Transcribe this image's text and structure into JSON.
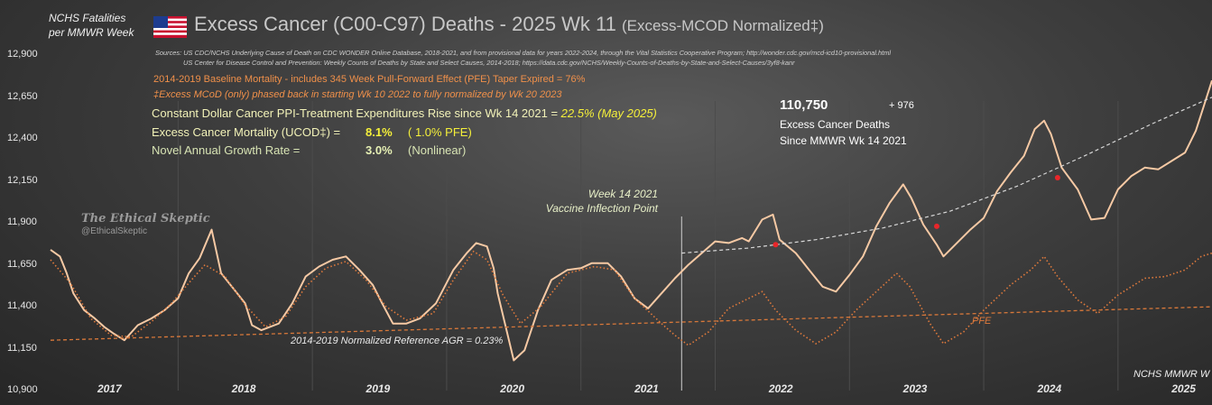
{
  "header": {
    "ylabel_line1": "NCHS Fatalities",
    "ylabel_line2": "per MMWR Week",
    "title": "Excess Cancer (C00-C97) Deaths - 2025 Wk 11",
    "title_suffix": "(Excess-MCOD  Normalized‡)",
    "sources_line1": "Sources:  US CDC/NCHS Underlying Cause of Death on CDC WONDER Online Database, 2018-2021, and from provisional data for years 2022-2024, through the Vital Statistics Cooperative Program; http://wonder.cdc.gov/mcd-icd10-provisional.html",
    "sources_line2": "US Center for Disease Control and Prevention: Weekly Counts of Deaths by State and Select Causes, 2014-2018; https://data.cdc.gov/NCHS/Weekly-Counts-of-Deaths-by-State-and-Select-Causes/3yf8-kanr"
  },
  "notes": {
    "baseline": "2014-2019 Baseline Mortality - includes 345 Week Pull-Forward Effect (PFE) Taper Expired =   76%",
    "mcod": "‡Excess  MCoD (only) phased back in starting  Wk 10 2022 to fully normalized  by Wk 20 2023",
    "ppi_label": "Constant Dollar Cancer PPI-Treatment Expenditures Rise since Wk 14 2021 = ",
    "ppi_value": "22.5% (May 2025)",
    "mortality_label": "Excess Cancer Mortality (UCOD‡) =",
    "mortality_value": "8.1%",
    "mortality_pfe": "( 1.0% PFE)",
    "growth_label": "Novel Annual Growth Rate  =",
    "growth_value": "3.0%",
    "growth_note": "(Nonlinear)"
  },
  "callout": {
    "total": "110,750",
    "delta": "+ 976",
    "line1": "Excess Cancer Deaths",
    "line2": "Since MMWR Wk 14 2021"
  },
  "annotations": {
    "vaccine_line1": "Week 14 2021",
    "vaccine_line2": "Vaccine Inflection Point",
    "reference": "2014-2019 Normalized Reference  AGR = 0.23%",
    "pfe": "PFE",
    "footer": "NCHS MMWR W",
    "watermark_line1": "The Ethical Skeptic",
    "watermark_line2": "@EthicalSkeptic"
  },
  "colors": {
    "excess_line": "#f6c9a4",
    "pfe_line": "#e07a3c",
    "reference_line": "#d8783a",
    "trend_line": "#d8d8d8",
    "marker": "#e8262a",
    "note_orange": "#f0904a",
    "highlight_yellow": "#f5f03a",
    "light_green": "#e6f0b4",
    "year_divider": "#4c4c4c"
  },
  "chart_data": {
    "type": "line",
    "x_unit": "year (decimal)",
    "xlim": [
      2016.55,
      2025.2
    ],
    "ylim": [
      10900,
      12950
    ],
    "yticks": [
      10900,
      11150,
      11400,
      11650,
      11900,
      12150,
      12400,
      12650,
      12900
    ],
    "ytick_labels": [
      "10,900",
      "11,150",
      "11,400",
      "11,650",
      "11,900",
      "12,150",
      "12,400",
      "12,650",
      "12,900"
    ],
    "categories": [
      "2017",
      "2018",
      "2019",
      "2020",
      "2021",
      "2022",
      "2023",
      "2024",
      "2025"
    ],
    "year_positions": [
      2017.0,
      2018.0,
      2019.0,
      2020.0,
      2021.0,
      2022.0,
      2023.0,
      2024.0,
      2025.0
    ],
    "vaccine_inflection_x": 2021.25,
    "series": [
      {
        "name": "",
        "style": "solid",
        "points": [
          [
            2016.55,
            11740
          ],
          [
            2016.62,
            11700
          ],
          [
            2016.67,
            11600
          ],
          [
            2016.72,
            11480
          ],
          [
            2016.8,
            11380
          ],
          [
            2016.88,
            11330
          ],
          [
            2016.95,
            11280
          ],
          [
            2017.02,
            11240
          ],
          [
            2017.1,
            11200
          ],
          [
            2017.2,
            11290
          ],
          [
            2017.3,
            11330
          ],
          [
            2017.4,
            11380
          ],
          [
            2017.5,
            11450
          ],
          [
            2017.58,
            11600
          ],
          [
            2017.66,
            11690
          ],
          [
            2017.75,
            11860
          ],
          [
            2017.82,
            11600
          ],
          [
            2017.9,
            11520
          ],
          [
            2018.0,
            11420
          ],
          [
            2018.05,
            11290
          ],
          [
            2018.12,
            11260
          ],
          [
            2018.25,
            11300
          ],
          [
            2018.35,
            11420
          ],
          [
            2018.45,
            11580
          ],
          [
            2018.55,
            11640
          ],
          [
            2018.65,
            11680
          ],
          [
            2018.75,
            11700
          ],
          [
            2018.85,
            11620
          ],
          [
            2018.95,
            11530
          ],
          [
            2019.02,
            11420
          ],
          [
            2019.1,
            11300
          ],
          [
            2019.2,
            11300
          ],
          [
            2019.3,
            11330
          ],
          [
            2019.42,
            11420
          ],
          [
            2019.55,
            11620
          ],
          [
            2019.65,
            11720
          ],
          [
            2019.72,
            11780
          ],
          [
            2019.8,
            11760
          ],
          [
            2019.85,
            11630
          ],
          [
            2019.88,
            11480
          ],
          [
            2019.94,
            11280
          ],
          [
            2020.0,
            11080
          ],
          [
            2020.08,
            11140
          ],
          [
            2020.18,
            11380
          ],
          [
            2020.28,
            11560
          ],
          [
            2020.4,
            11620
          ],
          [
            2020.5,
            11630
          ],
          [
            2020.58,
            11660
          ],
          [
            2020.7,
            11660
          ],
          [
            2020.8,
            11580
          ],
          [
            2020.9,
            11450
          ],
          [
            2021.0,
            11390
          ],
          [
            2021.1,
            11480
          ],
          [
            2021.2,
            11570
          ],
          [
            2021.3,
            11650
          ],
          [
            2021.4,
            11720
          ],
          [
            2021.5,
            11790
          ],
          [
            2021.6,
            11780
          ],
          [
            2021.7,
            11810
          ],
          [
            2021.75,
            11790
          ],
          [
            2021.85,
            11920
          ],
          [
            2021.93,
            11950
          ],
          [
            2021.98,
            11800
          ],
          [
            2022.1,
            11720
          ],
          [
            2022.2,
            11620
          ],
          [
            2022.3,
            11520
          ],
          [
            2022.4,
            11490
          ],
          [
            2022.5,
            11590
          ],
          [
            2022.6,
            11700
          ],
          [
            2022.7,
            11880
          ],
          [
            2022.8,
            12020
          ],
          [
            2022.9,
            12130
          ],
          [
            2022.96,
            12050
          ],
          [
            2023.05,
            11890
          ],
          [
            2023.15,
            11770
          ],
          [
            2023.2,
            11700
          ],
          [
            2023.3,
            11780
          ],
          [
            2023.4,
            11860
          ],
          [
            2023.5,
            11930
          ],
          [
            2023.6,
            12090
          ],
          [
            2023.7,
            12200
          ],
          [
            2023.8,
            12300
          ],
          [
            2023.88,
            12460
          ],
          [
            2023.95,
            12510
          ],
          [
            2024.0,
            12430
          ],
          [
            2024.08,
            12230
          ],
          [
            2024.2,
            12100
          ],
          [
            2024.3,
            11920
          ],
          [
            2024.4,
            11930
          ],
          [
            2024.5,
            12100
          ],
          [
            2024.6,
            12180
          ],
          [
            2024.7,
            12230
          ],
          [
            2024.8,
            12220
          ],
          [
            2024.9,
            12270
          ],
          [
            2025.0,
            12320
          ],
          [
            2025.08,
            12450
          ],
          [
            2025.14,
            12600
          ],
          [
            2025.2,
            12750
          ]
        ]
      },
      {
        "name": "PFE",
        "style": "dotted",
        "points": [
          [
            2016.55,
            11680
          ],
          [
            2016.7,
            11540
          ],
          [
            2016.85,
            11330
          ],
          [
            2017.0,
            11230
          ],
          [
            2017.15,
            11220
          ],
          [
            2017.3,
            11310
          ],
          [
            2017.45,
            11420
          ],
          [
            2017.6,
            11560
          ],
          [
            2017.7,
            11650
          ],
          [
            2017.85,
            11580
          ],
          [
            2018.0,
            11410
          ],
          [
            2018.15,
            11280
          ],
          [
            2018.3,
            11340
          ],
          [
            2018.45,
            11520
          ],
          [
            2018.6,
            11630
          ],
          [
            2018.75,
            11670
          ],
          [
            2018.9,
            11560
          ],
          [
            2019.05,
            11400
          ],
          [
            2019.2,
            11320
          ],
          [
            2019.4,
            11360
          ],
          [
            2019.55,
            11560
          ],
          [
            2019.7,
            11730
          ],
          [
            2019.8,
            11680
          ],
          [
            2019.92,
            11470
          ],
          [
            2020.05,
            11300
          ],
          [
            2020.2,
            11400
          ],
          [
            2020.4,
            11600
          ],
          [
            2020.6,
            11640
          ],
          [
            2020.75,
            11620
          ],
          [
            2020.9,
            11450
          ],
          [
            2021.1,
            11300
          ],
          [
            2021.2,
            11230
          ],
          [
            2021.3,
            11170
          ],
          [
            2021.45,
            11250
          ],
          [
            2021.6,
            11390
          ],
          [
            2021.75,
            11450
          ],
          [
            2021.85,
            11490
          ],
          [
            2021.95,
            11380
          ],
          [
            2022.1,
            11260
          ],
          [
            2022.25,
            11180
          ],
          [
            2022.4,
            11250
          ],
          [
            2022.55,
            11380
          ],
          [
            2022.7,
            11490
          ],
          [
            2022.85,
            11600
          ],
          [
            2022.95,
            11520
          ],
          [
            2023.1,
            11300
          ],
          [
            2023.2,
            11180
          ],
          [
            2023.35,
            11250
          ],
          [
            2023.5,
            11380
          ],
          [
            2023.7,
            11530
          ],
          [
            2023.85,
            11620
          ],
          [
            2023.95,
            11700
          ],
          [
            2024.05,
            11580
          ],
          [
            2024.2,
            11440
          ],
          [
            2024.35,
            11360
          ],
          [
            2024.5,
            11470
          ],
          [
            2024.7,
            11570
          ],
          [
            2024.85,
            11580
          ],
          [
            2025.0,
            11620
          ],
          [
            2025.12,
            11700
          ],
          [
            2025.2,
            11720
          ]
        ]
      },
      {
        "name": "2014-2019 Normalized Reference  AGR = 0.23%",
        "style": "dashed",
        "points": [
          [
            2016.55,
            11200
          ],
          [
            2025.2,
            11400
          ]
        ]
      },
      {
        "name": "",
        "style": "dashed-light",
        "points": [
          [
            2021.25,
            11720
          ],
          [
            2021.75,
            11750
          ],
          [
            2022.25,
            11800
          ],
          [
            2022.75,
            11870
          ],
          [
            2023.25,
            11970
          ],
          [
            2023.75,
            12120
          ],
          [
            2024.25,
            12300
          ],
          [
            2024.75,
            12490
          ],
          [
            2025.2,
            12650
          ]
        ]
      }
    ],
    "markers": [
      [
        2021.95,
        11770
      ],
      [
        2023.15,
        11880
      ],
      [
        2024.05,
        12170
      ]
    ]
  }
}
